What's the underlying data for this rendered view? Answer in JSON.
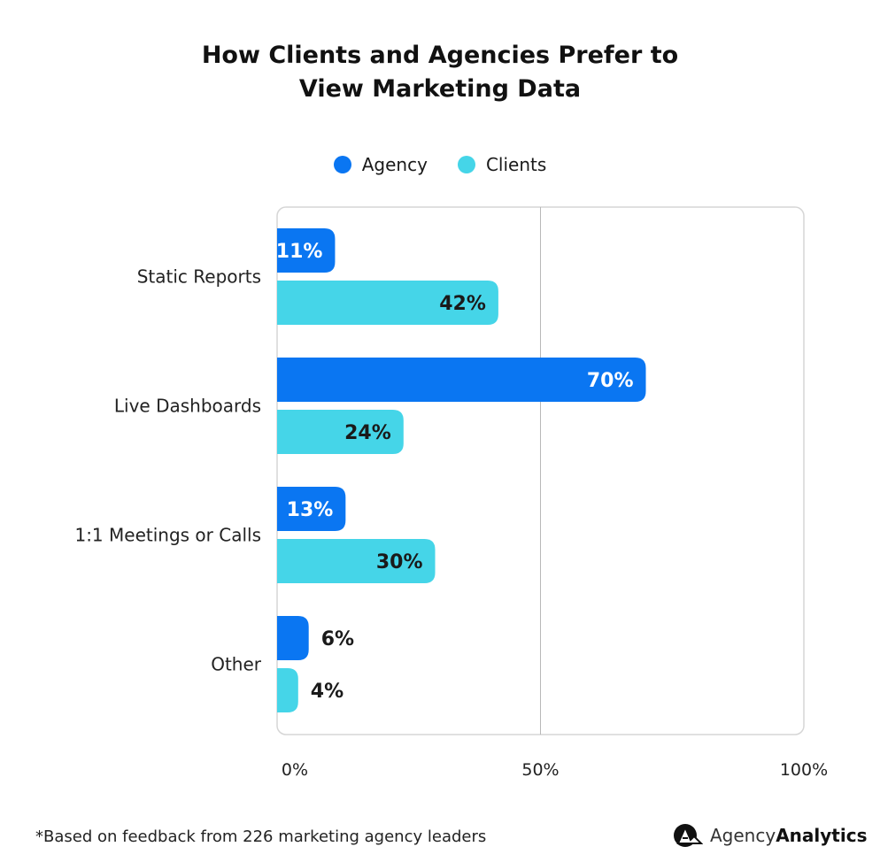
{
  "chart_data": {
    "type": "bar",
    "orientation": "horizontal",
    "title_lines": [
      "How Clients and Agencies Prefer to",
      "View Marketing Data"
    ],
    "categories": [
      "Static Reports",
      "Live Dashboards",
      "1:1 Meetings or Calls",
      "Other"
    ],
    "series": [
      {
        "name": "Agency",
        "color": "#0A76F2",
        "values": [
          11,
          70,
          13,
          6
        ]
      },
      {
        "name": "Clients",
        "color": "#45D5E8",
        "values": [
          42,
          24,
          30,
          4
        ]
      }
    ],
    "value_suffix": "%",
    "xlim": [
      0,
      100
    ],
    "x_ticks": [
      "0%",
      "50%",
      "100%"
    ],
    "x_tick_values": [
      0,
      50,
      100
    ],
    "grid": "vertical line at 50%",
    "legend_placement": "top-center"
  },
  "footnote": "*Based on feedback from 226 marketing agency leaders",
  "logo": {
    "part1": "Agency",
    "part2": "Analytics"
  }
}
